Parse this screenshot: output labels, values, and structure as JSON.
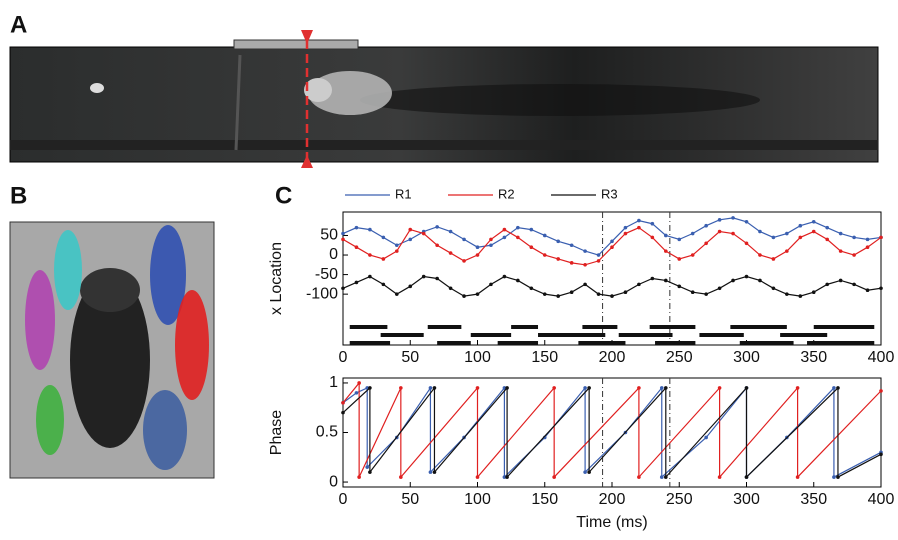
{
  "panels": [
    "A",
    "B",
    "C"
  ],
  "chart_data": [
    {
      "type": "line",
      "ylabel": "x Location",
      "xlim": [
        0,
        400
      ],
      "xticks": [
        0,
        50,
        100,
        150,
        200,
        250,
        300,
        350,
        400
      ],
      "ylim": [
        -230,
        110
      ],
      "yticks": [
        50,
        0,
        -50,
        -100
      ],
      "markers_x": [
        193,
        243
      ],
      "x": [
        0,
        10,
        20,
        30,
        40,
        50,
        60,
        70,
        80,
        90,
        100,
        110,
        120,
        130,
        140,
        150,
        160,
        170,
        180,
        190,
        200,
        210,
        220,
        230,
        240,
        250,
        260,
        270,
        280,
        290,
        300,
        310,
        320,
        330,
        340,
        350,
        360,
        370,
        380,
        390,
        400
      ],
      "series": [
        {
          "name": "R1",
          "color": "#3a5fb0",
          "values": [
            55,
            70,
            65,
            45,
            25,
            40,
            60,
            72,
            60,
            40,
            20,
            25,
            45,
            70,
            65,
            50,
            35,
            25,
            10,
            0,
            35,
            70,
            88,
            80,
            50,
            40,
            55,
            75,
            90,
            95,
            85,
            60,
            45,
            55,
            75,
            85,
            70,
            55,
            45,
            40,
            45
          ]
        },
        {
          "name": "R2",
          "color": "#e02020",
          "values": [
            40,
            20,
            0,
            -10,
            10,
            65,
            55,
            25,
            5,
            -15,
            0,
            40,
            65,
            45,
            20,
            0,
            -10,
            -20,
            -25,
            -15,
            20,
            55,
            70,
            45,
            10,
            -10,
            0,
            30,
            60,
            55,
            30,
            0,
            -10,
            10,
            45,
            60,
            40,
            10,
            0,
            20,
            45
          ]
        },
        {
          "name": "R3",
          "color": "#111111",
          "values": [
            -85,
            -70,
            -55,
            -75,
            -100,
            -80,
            -55,
            -60,
            -85,
            -105,
            -100,
            -75,
            -55,
            -65,
            -85,
            -100,
            -105,
            -95,
            -75,
            -100,
            -105,
            -95,
            -75,
            -60,
            -65,
            -80,
            -95,
            -100,
            -85,
            -65,
            -55,
            -65,
            -85,
            -100,
            -105,
            -95,
            -75,
            -65,
            -75,
            -90,
            -85
          ]
        }
      ],
      "stance_bars": [
        [
          [
            5,
            33
          ],
          [
            63,
            88
          ],
          [
            125,
            145
          ],
          [
            178,
            204
          ],
          [
            228,
            262
          ],
          [
            288,
            330
          ],
          [
            350,
            395
          ]
        ],
        [
          [
            28,
            60
          ],
          [
            95,
            125
          ],
          [
            145,
            195
          ],
          [
            205,
            245
          ],
          [
            265,
            298
          ],
          [
            325,
            360
          ]
        ],
        [
          [
            5,
            35
          ],
          [
            70,
            95
          ],
          [
            115,
            145
          ],
          [
            175,
            210
          ],
          [
            232,
            262
          ],
          [
            295,
            335
          ],
          [
            345,
            395
          ]
        ]
      ]
    },
    {
      "type": "line",
      "ylabel": "Phase",
      "xlabel": "Time (ms)",
      "xlim": [
        0,
        400
      ],
      "xticks": [
        0,
        50,
        100,
        150,
        200,
        250,
        300,
        350,
        400
      ],
      "ylim": [
        -0.05,
        1.05
      ],
      "yticks": [
        0,
        0.5,
        1
      ],
      "markers_x": [
        193,
        243
      ],
      "series": [
        {
          "color": "#3a5fb0",
          "x": [
            0,
            10,
            18,
            18,
            40,
            65,
            65,
            90,
            120,
            120,
            150,
            180,
            180,
            210,
            237,
            237,
            270,
            300,
            300,
            330,
            365,
            365,
            400
          ],
          "values": [
            0.8,
            0.9,
            0.95,
            0.15,
            0.45,
            0.95,
            0.1,
            0.45,
            0.95,
            0.05,
            0.45,
            0.95,
            0.1,
            0.5,
            0.95,
            0.05,
            0.45,
            0.95,
            0.05,
            0.45,
            0.95,
            0.05,
            0.3
          ]
        },
        {
          "color": "#e02020",
          "x": [
            0,
            12,
            12,
            43,
            43,
            100,
            100,
            157,
            157,
            220,
            220,
            280,
            280,
            338,
            338,
            400
          ],
          "values": [
            0.8,
            1.0,
            0.05,
            0.95,
            0.05,
            0.95,
            0.05,
            0.95,
            0.05,
            0.95,
            0.05,
            0.95,
            0.05,
            0.95,
            0.05,
            0.92
          ]
        },
        {
          "color": "#111111",
          "x": [
            0,
            20,
            20,
            68,
            68,
            122,
            122,
            183,
            183,
            240,
            240,
            300,
            300,
            368,
            368,
            400
          ],
          "values": [
            0.7,
            0.95,
            0.1,
            0.95,
            0.1,
            0.95,
            0.05,
            0.95,
            0.1,
            0.95,
            0.05,
            0.95,
            0.05,
            0.95,
            0.05,
            0.28
          ]
        }
      ]
    }
  ]
}
